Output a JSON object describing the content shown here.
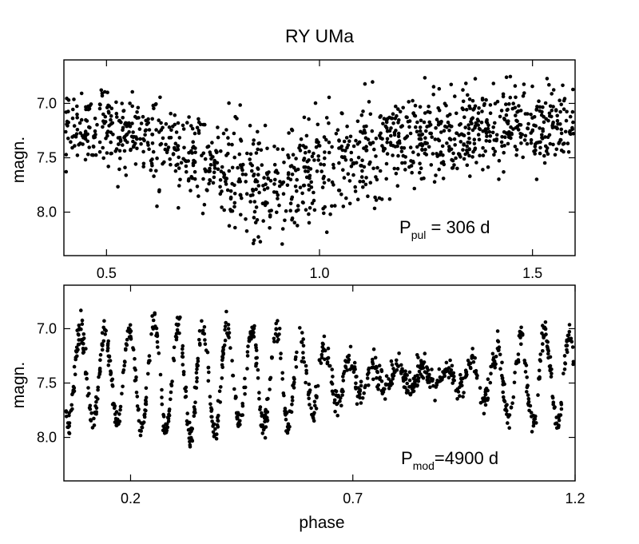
{
  "title": "RY UMa",
  "xlabel": "phase",
  "chart_data": [
    {
      "id": "top",
      "type": "scatter",
      "title": "RY UMa",
      "xlabel": "",
      "ylabel": "magn.",
      "xlim": [
        0.4,
        1.6
      ],
      "ylim": [
        8.4,
        6.6
      ],
      "y_inverted": true,
      "xticks": [
        0.5,
        1.0,
        1.5
      ],
      "xtick_labels": [
        "0.5",
        "1.0",
        "1.5"
      ],
      "yticks": [
        7.0,
        7.5,
        8.0
      ],
      "ytick_labels": [
        "7.0",
        "7.5",
        "8.0"
      ],
      "annotation": {
        "main": "P",
        "sub": "pul",
        "rest": " = 306 d"
      },
      "grid": false,
      "model": {
        "description": "light curve folded with pulsation period",
        "n": 1250,
        "points": [
          [
            0.4,
            7.25
          ],
          [
            0.5,
            7.2
          ],
          [
            0.6,
            7.3
          ],
          [
            0.7,
            7.45
          ],
          [
            0.8,
            7.62
          ],
          [
            0.9,
            7.72
          ],
          [
            1.0,
            7.6
          ],
          [
            1.1,
            7.45
          ],
          [
            1.2,
            7.35
          ],
          [
            1.3,
            7.28
          ],
          [
            1.4,
            7.22
          ],
          [
            1.5,
            7.2
          ],
          [
            1.6,
            7.25
          ]
        ],
        "scatter": 0.22
      }
    },
    {
      "id": "bottom",
      "type": "scatter",
      "xlabel": "phase",
      "ylabel": "magn.",
      "xlim": [
        0.05,
        1.2
      ],
      "ylim": [
        8.4,
        6.6
      ],
      "y_inverted": true,
      "xticks": [
        0.2,
        0.7,
        1.2
      ],
      "xtick_labels": [
        "0.2",
        "0.7",
        "1.2"
      ],
      "yticks": [
        7.0,
        7.5,
        8.0
      ],
      "ytick_labels": [
        "7.0",
        "7.5",
        "8.0"
      ],
      "annotation": {
        "main": "P",
        "sub": "mod",
        "rest": "=4900 d"
      },
      "grid": false,
      "model": {
        "description": "light curve folded with modulation period",
        "n": 1100,
        "cycle_centers": [
          0.06,
          0.115,
          0.17,
          0.225,
          0.28,
          0.335,
          0.39,
          0.445,
          0.5,
          0.555,
          0.61,
          0.665,
          0.72,
          0.775,
          0.83,
          0.885,
          0.94,
          0.995,
          1.05,
          1.105,
          1.16
        ],
        "amplitude": [
          0.45,
          0.42,
          0.4,
          0.45,
          0.5,
          0.52,
          0.5,
          0.42,
          0.45,
          0.45,
          0.32,
          0.22,
          0.15,
          0.1,
          0.08,
          0.1,
          0.12,
          0.2,
          0.35,
          0.4,
          0.42
        ],
        "mean_mag": 7.4
      }
    }
  ]
}
